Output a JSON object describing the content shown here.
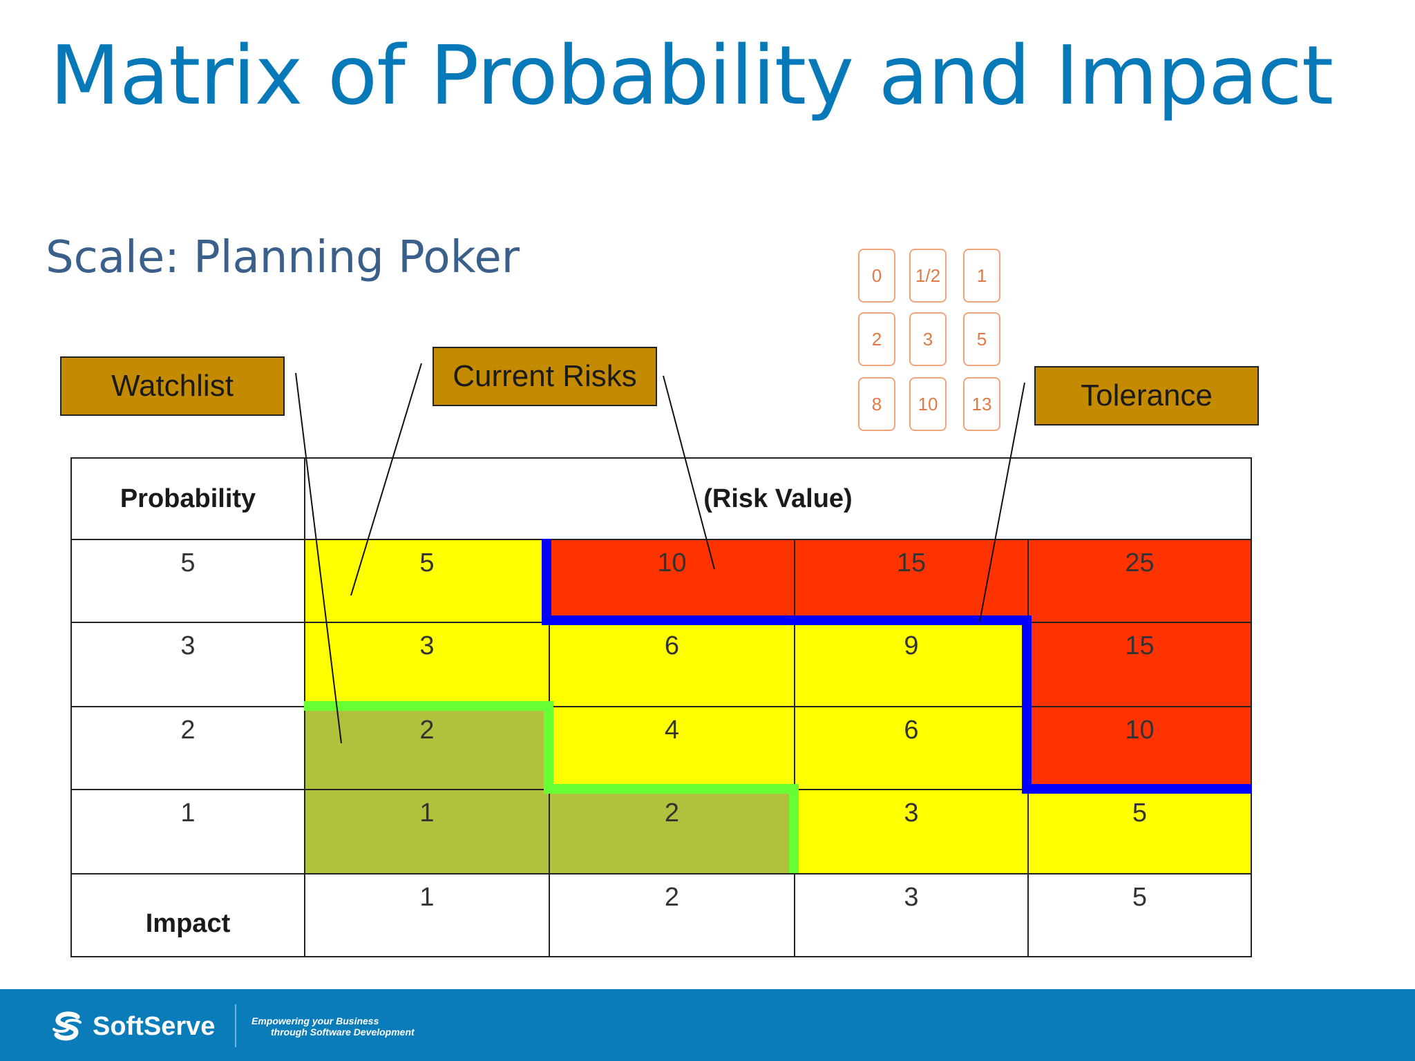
{
  "title": "Matrix of Probability and Impact",
  "subtitle": "Scale: Planning Poker",
  "callouts": {
    "watchlist": "Watchlist",
    "current_risks": "Current Risks",
    "tolerance": "Tolerance"
  },
  "poker_cards": [
    "0",
    "1/2",
    "1",
    "2",
    "3",
    "5",
    "8",
    "10",
    "13"
  ],
  "matrix": {
    "probability_header": "Probability",
    "risk_value_header": "(Risk Value)",
    "impact_header": "Impact",
    "rows": [
      {
        "probability": "5",
        "values": [
          "5",
          "10",
          "15",
          "25"
        ]
      },
      {
        "probability": "3",
        "values": [
          "3",
          "6",
          "9",
          "15"
        ]
      },
      {
        "probability": "2",
        "values": [
          "2",
          "4",
          "6",
          "10"
        ]
      },
      {
        "probability": "1",
        "values": [
          "1",
          "2",
          "3",
          "5"
        ]
      }
    ],
    "impact_values": [
      "1",
      "2",
      "3",
      "5"
    ]
  },
  "colors": {
    "title": "#0879b8",
    "yellow": "#ffff00",
    "red": "#ff3300",
    "olive": "#b1c13d",
    "tolerance_line": "#0000ff",
    "watchlist_line": "#66ff33",
    "callout": "#c58b00",
    "footer": "#0a7cba"
  },
  "footer": {
    "brand": "SoftServe",
    "tagline_line1": "Empowering your Business",
    "tagline_line2": "through Software Development"
  }
}
